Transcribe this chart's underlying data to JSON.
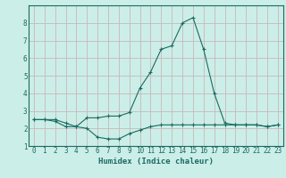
{
  "xlabel": "Humidex (Indice chaleur)",
  "bg_color": "#cceee8",
  "grid_color": "#c8b8b8",
  "line_color": "#1a6b60",
  "xlim": [
    -0.5,
    23.5
  ],
  "ylim": [
    1,
    9
  ],
  "yticks": [
    1,
    2,
    3,
    4,
    5,
    6,
    7,
    8
  ],
  "xticks": [
    0,
    1,
    2,
    3,
    4,
    5,
    6,
    7,
    8,
    9,
    10,
    11,
    12,
    13,
    14,
    15,
    16,
    17,
    18,
    19,
    20,
    21,
    22,
    23
  ],
  "line1_x": [
    0,
    1,
    2,
    3,
    4,
    5,
    6,
    7,
    8,
    9,
    10,
    11,
    12,
    13,
    14,
    15,
    16,
    17,
    18,
    19,
    20,
    21,
    22,
    23
  ],
  "line1_y": [
    2.5,
    2.5,
    2.5,
    2.3,
    2.1,
    2.0,
    1.5,
    1.4,
    1.4,
    1.7,
    1.9,
    2.1,
    2.2,
    2.2,
    2.2,
    2.2,
    2.2,
    2.2,
    2.2,
    2.2,
    2.2,
    2.2,
    2.1,
    2.2
  ],
  "line2_x": [
    0,
    1,
    2,
    3,
    4,
    5,
    6,
    7,
    8,
    9,
    10,
    11,
    12,
    13,
    14,
    15,
    16,
    17,
    18,
    19,
    20,
    21,
    22,
    23
  ],
  "line2_y": [
    2.5,
    2.5,
    2.4,
    2.1,
    2.1,
    2.6,
    2.6,
    2.7,
    2.7,
    2.9,
    4.3,
    5.2,
    6.5,
    6.7,
    8.0,
    8.3,
    6.5,
    4.0,
    2.3,
    2.2,
    2.2,
    2.2,
    2.1,
    2.2
  ],
  "xlabel_fontsize": 6.5,
  "tick_fontsize": 5.5,
  "linewidth": 0.8,
  "markersize": 2.5,
  "markeredgewidth": 0.8
}
